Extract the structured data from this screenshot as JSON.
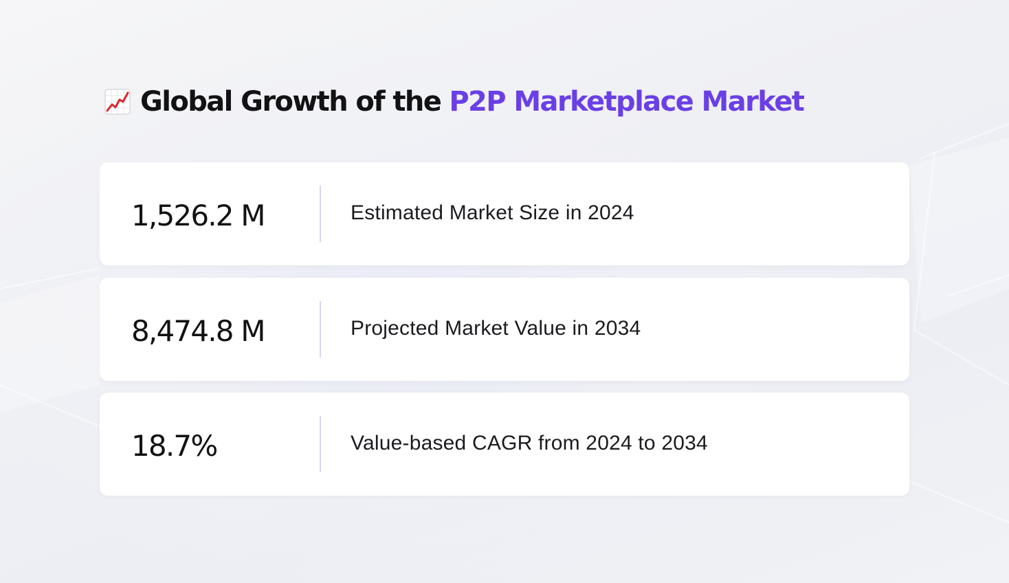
{
  "title": {
    "icon": "chart-increasing-icon",
    "text": "Global Growth of the",
    "accent_text": "P2P Marketplace Market",
    "accent_color": "#6a3fe6"
  },
  "stats": [
    {
      "value": "1,526.2 M",
      "label": "Estimated Market Size in 2024"
    },
    {
      "value": "8,474.8 M",
      "label": "Projected Market Value in 2034"
    },
    {
      "value": "18.7%",
      "label": "Value-based CAGR from 2024 to 2034"
    }
  ]
}
